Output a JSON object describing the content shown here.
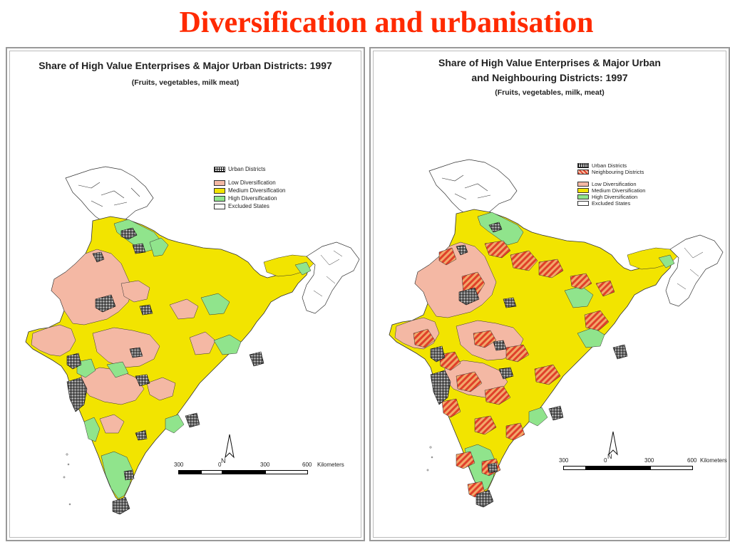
{
  "slide": {
    "title": "Diversification and urbanisation"
  },
  "colors": {
    "title": "#ff2a00",
    "low": "#f4b8a4",
    "medium": "#f2e400",
    "high": "#90e48c",
    "excluded": "#ffffff",
    "urban": "#111111",
    "neighbour": "#e0402a"
  },
  "left_map": {
    "title": "Share of High Value Enterprises & Major Urban Districts: 1997",
    "subtitle": "(Fruits, vegetables, milk meat)",
    "legend": [
      {
        "label": "Urban Districts",
        "style": "urban"
      },
      {
        "label": "Low Diversification",
        "style": "low"
      },
      {
        "label": "Medium Diversification",
        "style": "medium"
      },
      {
        "label": "High Diversification",
        "style": "high"
      },
      {
        "label": "Excluded States",
        "style": "excluded"
      }
    ],
    "north_label": "N",
    "scale": {
      "ticks": [
        "300",
        "0",
        "300",
        "600"
      ],
      "unit": "Kilometers"
    }
  },
  "right_map": {
    "title_line1": "Share of High Value Enterprises & Major Urban",
    "title_line2": "and Neighbouring Districts: 1997",
    "subtitle": "(Fruits, vegetables, milk, meat)",
    "legend": [
      {
        "label": "Urban Districts",
        "style": "urban"
      },
      {
        "label": "Neighbouring Districts",
        "style": "neighbour"
      },
      {
        "label": "Low Diversification",
        "style": "low"
      },
      {
        "label": "Medium Diversification",
        "style": "medium"
      },
      {
        "label": "High Diversification",
        "style": "high"
      },
      {
        "label": "Excluded States",
        "style": "excluded"
      }
    ],
    "north_label": "N",
    "scale": {
      "ticks": [
        "300",
        "0",
        "300",
        "600"
      ],
      "unit": "Kilometers"
    }
  }
}
